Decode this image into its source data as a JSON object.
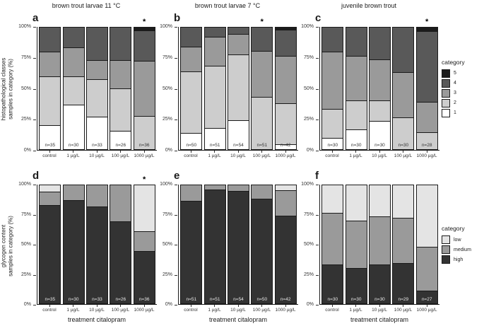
{
  "axes": {
    "ylabel_top_line1": "histopathological classes",
    "ylabel_top_line2": "samples in category (%)",
    "ylabel_bottom_line1": "glycogen content",
    "ylabel_bottom_line2": "samples in category (%)",
    "y_ticks": [
      "100%",
      "75%",
      "50%",
      "25%",
      "0%"
    ],
    "x_axis_title": "treatment citalopram"
  },
  "legend_top": {
    "title": "category",
    "items": [
      {
        "label": "5",
        "color": "#1c1c1c"
      },
      {
        "label": "4",
        "color": "#595959"
      },
      {
        "label": "3",
        "color": "#9a9a9a"
      },
      {
        "label": "2",
        "color": "#cdcdcd"
      },
      {
        "label": "1",
        "color": "#ffffff"
      }
    ]
  },
  "legend_bottom": {
    "title": "category",
    "items": [
      {
        "label": "low",
        "color": "#e4e4e4"
      },
      {
        "label": "medium",
        "color": "#9a9a9a"
      },
      {
        "label": "high",
        "color": "#333333"
      }
    ]
  },
  "chart_data": [
    {
      "id": "a",
      "letter": "a",
      "row": "top",
      "type": "bar",
      "stacked": true,
      "title": "brown trout larvae 11 °C",
      "ylabel": "histopathological classes — samples in category (%)",
      "xlabel": "",
      "ylim": [
        0,
        100
      ],
      "grid": false,
      "categories": [
        "control",
        "1 µg/L",
        "10 µg/L",
        "100 µg/L",
        "1000 µg/L"
      ],
      "n_labels": [
        "n=35",
        "n=30",
        "n=33",
        "n=26",
        "n=36"
      ],
      "significance": [
        "",
        "",
        "",
        "",
        "*"
      ],
      "series": [
        {
          "name": "1",
          "color": "#ffffff",
          "values": [
            20.0,
            36.7,
            27.3,
            15.4,
            0
          ]
        },
        {
          "name": "2",
          "color": "#cdcdcd",
          "values": [
            40.0,
            23.3,
            30.3,
            34.6,
            27.8
          ]
        },
        {
          "name": "3",
          "color": "#9a9a9a",
          "values": [
            20.0,
            23.3,
            15.2,
            23.1,
            44.4
          ]
        },
        {
          "name": "4",
          "color": "#595959",
          "values": [
            20.0,
            16.7,
            27.2,
            26.9,
            25.0
          ]
        },
        {
          "name": "5",
          "color": "#1c1c1c",
          "values": [
            0,
            0,
            0,
            0,
            2.8
          ]
        }
      ]
    },
    {
      "id": "b",
      "letter": "b",
      "row": "top",
      "type": "bar",
      "stacked": true,
      "title": "brown trout larvae 7 °C",
      "ylabel": "histopathological classes — samples in category (%)",
      "xlabel": "",
      "ylim": [
        0,
        100
      ],
      "grid": false,
      "categories": [
        "control",
        "1 µg/L",
        "10 µg/L",
        "100 µg/L",
        "1000 µg/L"
      ],
      "n_labels": [
        "n=50",
        "n=51",
        "n=54",
        "n=51",
        "n=42"
      ],
      "significance": [
        "",
        "",
        "",
        "*",
        ""
      ],
      "series": [
        {
          "name": "1",
          "color": "#ffffff",
          "values": [
            14.0,
            17.6,
            24.1,
            0,
            4.8
          ]
        },
        {
          "name": "2",
          "color": "#cdcdcd",
          "values": [
            50.0,
            51.0,
            53.7,
            43.1,
            33.3
          ]
        },
        {
          "name": "3",
          "color": "#9a9a9a",
          "values": [
            20.0,
            23.5,
            16.6,
            37.3,
            38.1
          ]
        },
        {
          "name": "4",
          "color": "#595959",
          "values": [
            16.0,
            7.9,
            5.6,
            19.6,
            21.4
          ]
        },
        {
          "name": "5",
          "color": "#1c1c1c",
          "values": [
            0,
            0,
            0,
            0,
            2.4
          ]
        }
      ]
    },
    {
      "id": "c",
      "letter": "c",
      "row": "top",
      "type": "bar",
      "stacked": true,
      "title": "juvenile brown trout",
      "ylabel": "histopathological classes — samples in category (%)",
      "xlabel": "",
      "ylim": [
        0,
        100
      ],
      "grid": false,
      "categories": [
        "control",
        "1 µg/L",
        "10 µg/L",
        "100 µg/L",
        "1000 µg/L"
      ],
      "n_labels": [
        "n=30",
        "n=30",
        "n=30",
        "n=30",
        "n=28"
      ],
      "significance": [
        "",
        "",
        "",
        "",
        "*"
      ],
      "series": [
        {
          "name": "1",
          "color": "#ffffff",
          "values": [
            10.0,
            16.7,
            23.3,
            0,
            0
          ]
        },
        {
          "name": "2",
          "color": "#cdcdcd",
          "values": [
            23.3,
            23.3,
            16.7,
            26.7,
            14.3
          ]
        },
        {
          "name": "3",
          "color": "#9a9a9a",
          "values": [
            46.7,
            36.7,
            33.3,
            36.6,
            25.0
          ]
        },
        {
          "name": "4",
          "color": "#595959",
          "values": [
            20.0,
            23.3,
            26.7,
            36.7,
            57.1
          ]
        },
        {
          "name": "5",
          "color": "#1c1c1c",
          "values": [
            0,
            0,
            0,
            0,
            3.6
          ]
        }
      ]
    },
    {
      "id": "d",
      "letter": "d",
      "row": "bottom",
      "type": "bar",
      "stacked": true,
      "title": "",
      "ylabel": "glycogen content — samples in category (%)",
      "xlabel": "treatment citalopram",
      "ylim": [
        0,
        100
      ],
      "grid": false,
      "categories": [
        "control",
        "1 µg/L",
        "10 µg/L",
        "100 µg/L",
        "1000 µg/L"
      ],
      "n_labels": [
        "n=35",
        "n=30",
        "n=33",
        "n=26",
        "n=36"
      ],
      "significance": [
        "",
        "",
        "",
        "",
        "*"
      ],
      "series": [
        {
          "name": "high",
          "color": "#333333",
          "values": [
            82.9,
            86.7,
            81.8,
            69.2,
            44.4
          ]
        },
        {
          "name": "medium",
          "color": "#9a9a9a",
          "values": [
            11.4,
            13.3,
            18.2,
            30.8,
            16.7
          ]
        },
        {
          "name": "low",
          "color": "#e4e4e4",
          "values": [
            5.7,
            0,
            0,
            0,
            38.9
          ]
        }
      ]
    },
    {
      "id": "e",
      "letter": "e",
      "row": "bottom",
      "type": "bar",
      "stacked": true,
      "title": "",
      "ylabel": "glycogen content — samples in category (%)",
      "xlabel": "treatment citalopram",
      "ylim": [
        0,
        100
      ],
      "grid": false,
      "categories": [
        "control",
        "1 µg/L",
        "10 µg/L",
        "100 µg/L",
        "1000 µg/L"
      ],
      "n_labels": [
        "n=51",
        "n=51",
        "n=54",
        "n=50",
        "n=42"
      ],
      "significance": [
        "",
        "",
        "",
        "",
        ""
      ],
      "series": [
        {
          "name": "high",
          "color": "#333333",
          "values": [
            86.3,
            96.1,
            94.4,
            88.0,
            73.8
          ]
        },
        {
          "name": "medium",
          "color": "#9a9a9a",
          "values": [
            13.7,
            3.9,
            5.6,
            12.0,
            21.4
          ]
        },
        {
          "name": "low",
          "color": "#e4e4e4",
          "values": [
            0,
            0,
            0,
            0,
            4.8
          ]
        }
      ]
    },
    {
      "id": "f",
      "letter": "f",
      "row": "bottom",
      "type": "bar",
      "stacked": true,
      "title": "",
      "ylabel": "glycogen content — samples in category (%)",
      "xlabel": "treatment citalopram",
      "ylim": [
        0,
        100
      ],
      "grid": false,
      "categories": [
        "control",
        "1 µg/L",
        "10 µg/L",
        "100 µg/L",
        "1000 µg/L"
      ],
      "n_labels": [
        "n=30",
        "n=30",
        "n=30",
        "n=29",
        "n=27"
      ],
      "significance": [
        "",
        "",
        "",
        "",
        ""
      ],
      "series": [
        {
          "name": "high",
          "color": "#333333",
          "values": [
            33.3,
            30.0,
            33.3,
            34.5,
            11.1
          ]
        },
        {
          "name": "medium",
          "color": "#9a9a9a",
          "values": [
            43.3,
            40.0,
            40.0,
            37.9,
            37.0
          ]
        },
        {
          "name": "low",
          "color": "#e4e4e4",
          "values": [
            23.4,
            30.0,
            26.7,
            27.6,
            51.9
          ]
        }
      ]
    }
  ]
}
